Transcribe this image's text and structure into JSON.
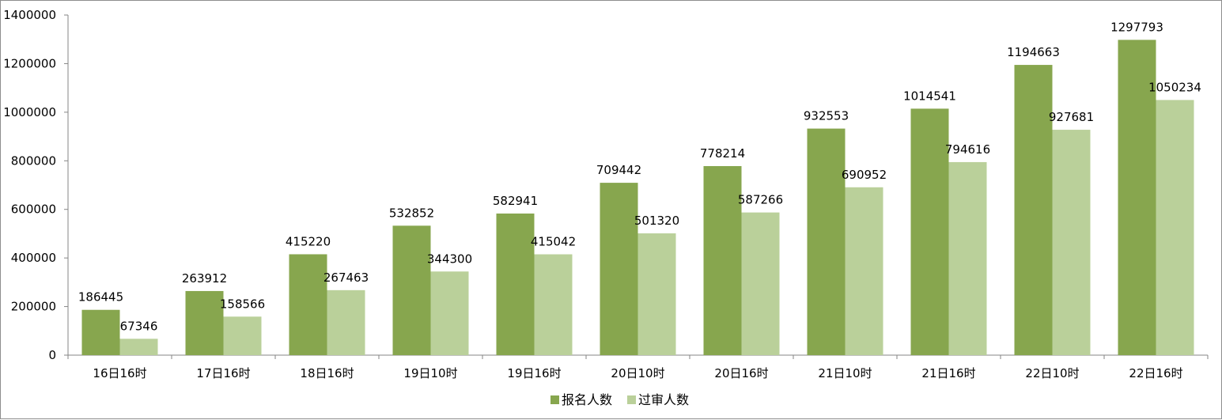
{
  "chart_data": {
    "type": "bar",
    "title": "",
    "xlabel": "",
    "ylabel": "",
    "ylim": [
      0,
      1400000
    ],
    "yticks": [
      "0",
      "200000",
      "400000",
      "600000",
      "800000",
      "1000000",
      "1200000",
      "1400000"
    ],
    "categories": [
      "16日16时",
      "17日16时",
      "18日16时",
      "19日10时",
      "19日16时",
      "20日10时",
      "20日16时",
      "21日10时",
      "21日16时",
      "22日10时",
      "22日16时"
    ],
    "series": [
      {
        "name": "报名人数",
        "color": "#87a64e",
        "values": [
          186445,
          263912,
          415220,
          532852,
          582941,
          709442,
          778214,
          932553,
          1014541,
          1194663,
          1297793
        ]
      },
      {
        "name": "过审人数",
        "color": "#bad09a",
        "values": [
          67346,
          158566,
          267463,
          344300,
          415042,
          501320,
          587266,
          690952,
          794616,
          927681,
          1050234
        ]
      }
    ],
    "grid": false,
    "legend_position": "bottom"
  }
}
